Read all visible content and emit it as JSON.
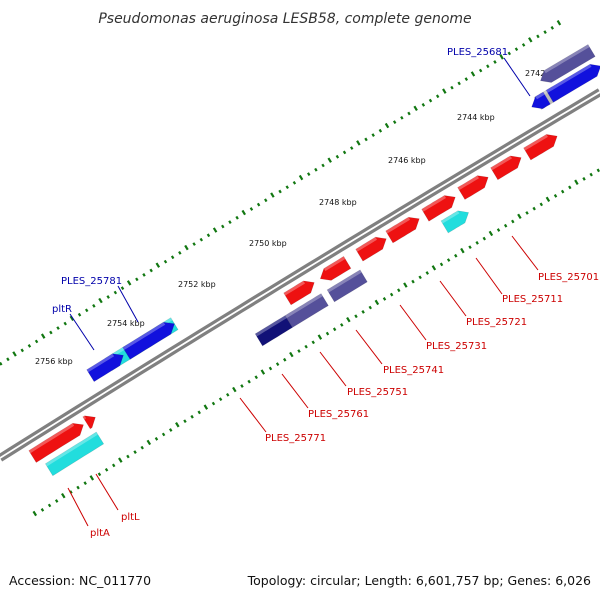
{
  "title": "Pseudomonas aeruginosa LESB58, complete genome",
  "footer": {
    "accession": "Accession: NC_011770",
    "topology": "Topology: circular; Length: 6,601,757 bp; Genes: 6,026"
  },
  "colors": {
    "red": "#ee1111",
    "cyan": "#22dddd",
    "blue": "#1111dd",
    "slate": "#55509a",
    "navy": "#111177",
    "grey": "#bbbbbb",
    "backbone": "#808080",
    "dots": "#117711",
    "label_red": "#cc0000",
    "label_blue": "#0000aa"
  },
  "axis": {
    "unit": "kbp",
    "ticks": [
      "2742 kbp",
      "2744 kbp",
      "2746 kbp",
      "2748 kbp",
      "2750 kbp",
      "2752 kbp",
      "2754 kbp",
      "2756 kbp"
    ]
  },
  "labels": {
    "ples_25681": "PLES_25681",
    "ples_25701": "PLES_25701",
    "ples_25711": "PLES_25711",
    "ples_25721": "PLES_25721",
    "ples_25731": "PLES_25731",
    "ples_25741": "PLES_25741",
    "ples_25751": "PLES_25751",
    "ples_25761": "PLES_25761",
    "ples_25771": "PLES_25771",
    "ples_25781": "PLES_25781",
    "pltR": "pltR",
    "pltL": "pltL",
    "pltA": "pltA"
  },
  "genes": [
    {
      "id": "g-25681a",
      "color": "slate",
      "ring": "outer2",
      "dir": "rev"
    },
    {
      "id": "g-25681b",
      "color": "grey",
      "ring": "outer1",
      "dir": "none"
    },
    {
      "id": "g-25681c",
      "color": "blue",
      "ring": "outer1",
      "dir": "rev"
    },
    {
      "id": "g-25681d",
      "color": "blue",
      "ring": "outer1",
      "dir": "fwd"
    },
    {
      "id": "ples-25701",
      "color": "red",
      "ring": "inner1",
      "dir": "fwd"
    },
    {
      "id": "ples-25711",
      "color": "red",
      "ring": "inner1",
      "dir": "fwd"
    },
    {
      "id": "ples-25721a",
      "color": "red",
      "ring": "inner1",
      "dir": "fwd"
    },
    {
      "id": "ples-25721b",
      "color": "cyan",
      "ring": "inner2",
      "dir": "fwd"
    },
    {
      "id": "ples-25731",
      "color": "red",
      "ring": "inner1",
      "dir": "fwd"
    },
    {
      "id": "ples-25741",
      "color": "red",
      "ring": "inner1",
      "dir": "fwd"
    },
    {
      "id": "ples-25751a",
      "color": "red",
      "ring": "inner1",
      "dir": "fwd"
    },
    {
      "id": "ples-25751b",
      "color": "slate",
      "ring": "inner2",
      "dir": "none"
    },
    {
      "id": "ples-25761a",
      "color": "red",
      "ring": "inner1",
      "dir": "rev"
    },
    {
      "id": "ples-25761b",
      "color": "slate",
      "ring": "inner2",
      "dir": "none"
    },
    {
      "id": "ples-25771a",
      "color": "red",
      "ring": "inner1",
      "dir": "fwd"
    },
    {
      "id": "ples-25771b",
      "color": "navy",
      "ring": "inner2",
      "dir": "none"
    },
    {
      "id": "ples-25781",
      "color": "cyan",
      "ring": "outer1",
      "dir": "none"
    },
    {
      "id": "pltR-gene",
      "color": "blue",
      "ring": "outer1",
      "dir": "fwd"
    },
    {
      "id": "pltR-gene2",
      "color": "blue",
      "ring": "outer1",
      "dir": "fwd"
    },
    {
      "id": "pltL-gene",
      "color": "red",
      "ring": "inner1",
      "dir": "fwd"
    },
    {
      "id": "pltL-gene2",
      "color": "red",
      "ring": "inner1",
      "dir": "fwd"
    },
    {
      "id": "pltA-gene",
      "color": "cyan",
      "ring": "inner2",
      "dir": "none"
    }
  ]
}
